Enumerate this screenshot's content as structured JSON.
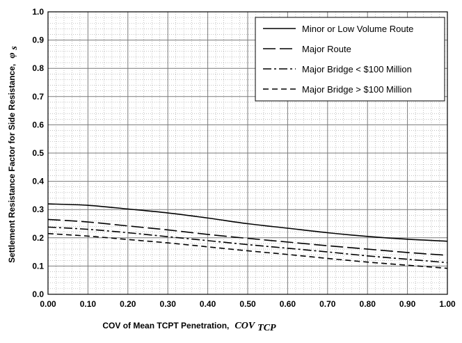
{
  "chart_data": {
    "type": "line",
    "title": "",
    "xlabel": "COV of Mean TCPT Penetration,",
    "xlabel_symbol": "COV",
    "xlabel_symbol_sub": "TCP",
    "ylabel": "Settlement Resistance Factor for Side Resistance,",
    "ylabel_symbol": "φ",
    "ylabel_symbol_sub": "s",
    "xlim": [
      0,
      1
    ],
    "ylim": [
      0,
      1
    ],
    "x_ticks": [
      "0.00",
      "0.10",
      "0.20",
      "0.30",
      "0.40",
      "0.50",
      "0.60",
      "0.70",
      "0.80",
      "0.90",
      "1.00"
    ],
    "y_ticks": [
      "0.0",
      "0.1",
      "0.2",
      "0.3",
      "0.4",
      "0.5",
      "0.6",
      "0.7",
      "0.8",
      "0.9",
      "1.0"
    ],
    "grid": true,
    "legend_position": "top-right",
    "x": [
      0.0,
      0.1,
      0.2,
      0.3,
      0.4,
      0.5,
      0.6,
      0.7,
      0.8,
      0.9,
      1.0
    ],
    "series": [
      {
        "name": "Minor or Low Volume Route",
        "dash": "solid",
        "values": [
          0.32,
          0.315,
          0.302,
          0.288,
          0.27,
          0.25,
          0.234,
          0.218,
          0.205,
          0.195,
          0.188
        ]
      },
      {
        "name": "Major Route",
        "dash": "long-dash",
        "values": [
          0.265,
          0.256,
          0.242,
          0.228,
          0.212,
          0.198,
          0.185,
          0.172,
          0.16,
          0.148,
          0.138
        ]
      },
      {
        "name": "Major Bridge < $100 Million",
        "dash": "dash-dot",
        "values": [
          0.238,
          0.23,
          0.218,
          0.204,
          0.19,
          0.176,
          0.163,
          0.15,
          0.136,
          0.124,
          0.112
        ]
      },
      {
        "name": "Major Bridge > $100 Million",
        "dash": "short-dash",
        "values": [
          0.215,
          0.206,
          0.194,
          0.182,
          0.168,
          0.154,
          0.141,
          0.127,
          0.114,
          0.103,
          0.092
        ]
      }
    ]
  }
}
